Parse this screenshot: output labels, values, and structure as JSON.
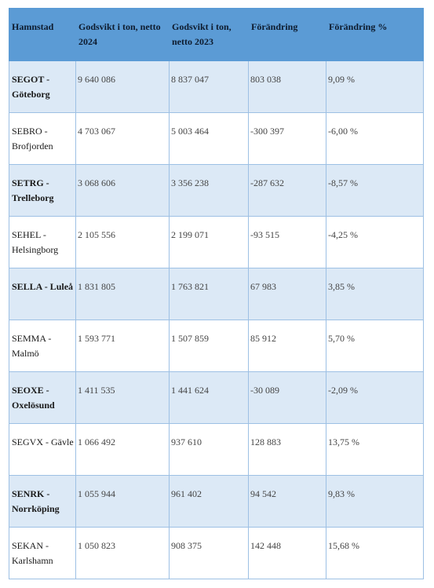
{
  "table": {
    "headers": [
      "Hamnstad",
      "Godsvikt i ton, netto 2024",
      "Godsvikt i ton, netto 2023",
      "Förändring",
      "Förändring %"
    ],
    "rows": [
      [
        "SEGOT - Göteborg",
        "9 640 086",
        "8 837 047",
        "803 038",
        "9,09 %"
      ],
      [
        "SEBRO - Brofjorden",
        "4 703 067",
        "5 003 464",
        "-300 397",
        "-6,00 %"
      ],
      [
        "SETRG - Trelleborg",
        "3 068 606",
        "3 356 238",
        "-287 632",
        "-8,57 %"
      ],
      [
        "SEHEL - Helsingborg",
        "2 105 556",
        "2 199 071",
        "-93 515",
        "-4,25 %"
      ],
      [
        "SELLA - Luleå",
        "1 831 805",
        "1 763 821",
        "67 983",
        "3,85 %"
      ],
      [
        "SEMMA - Malmö",
        "1 593 771",
        "1 507 859",
        "85 912",
        "5,70 %"
      ],
      [
        "SEOXE - Oxelösund",
        "1 411 535",
        "1 441 624",
        "-30 089",
        "-2,09 %"
      ],
      [
        "SEGVX - Gävle",
        "1 066 492",
        "937 610",
        "128 883",
        "13,75 %"
      ],
      [
        "SENRK - Norrköping",
        "1 055 944",
        "961 402",
        "94 542",
        "9,83 %"
      ],
      [
        "SEKAN - Karlshamn",
        "1 050 823",
        "908 375",
        "142 448",
        "15,68 %"
      ]
    ]
  },
  "colors": {
    "header_bg": "#5b9bd5",
    "stripe_bg": "#dce9f6",
    "border": "#9dc0e4"
  }
}
